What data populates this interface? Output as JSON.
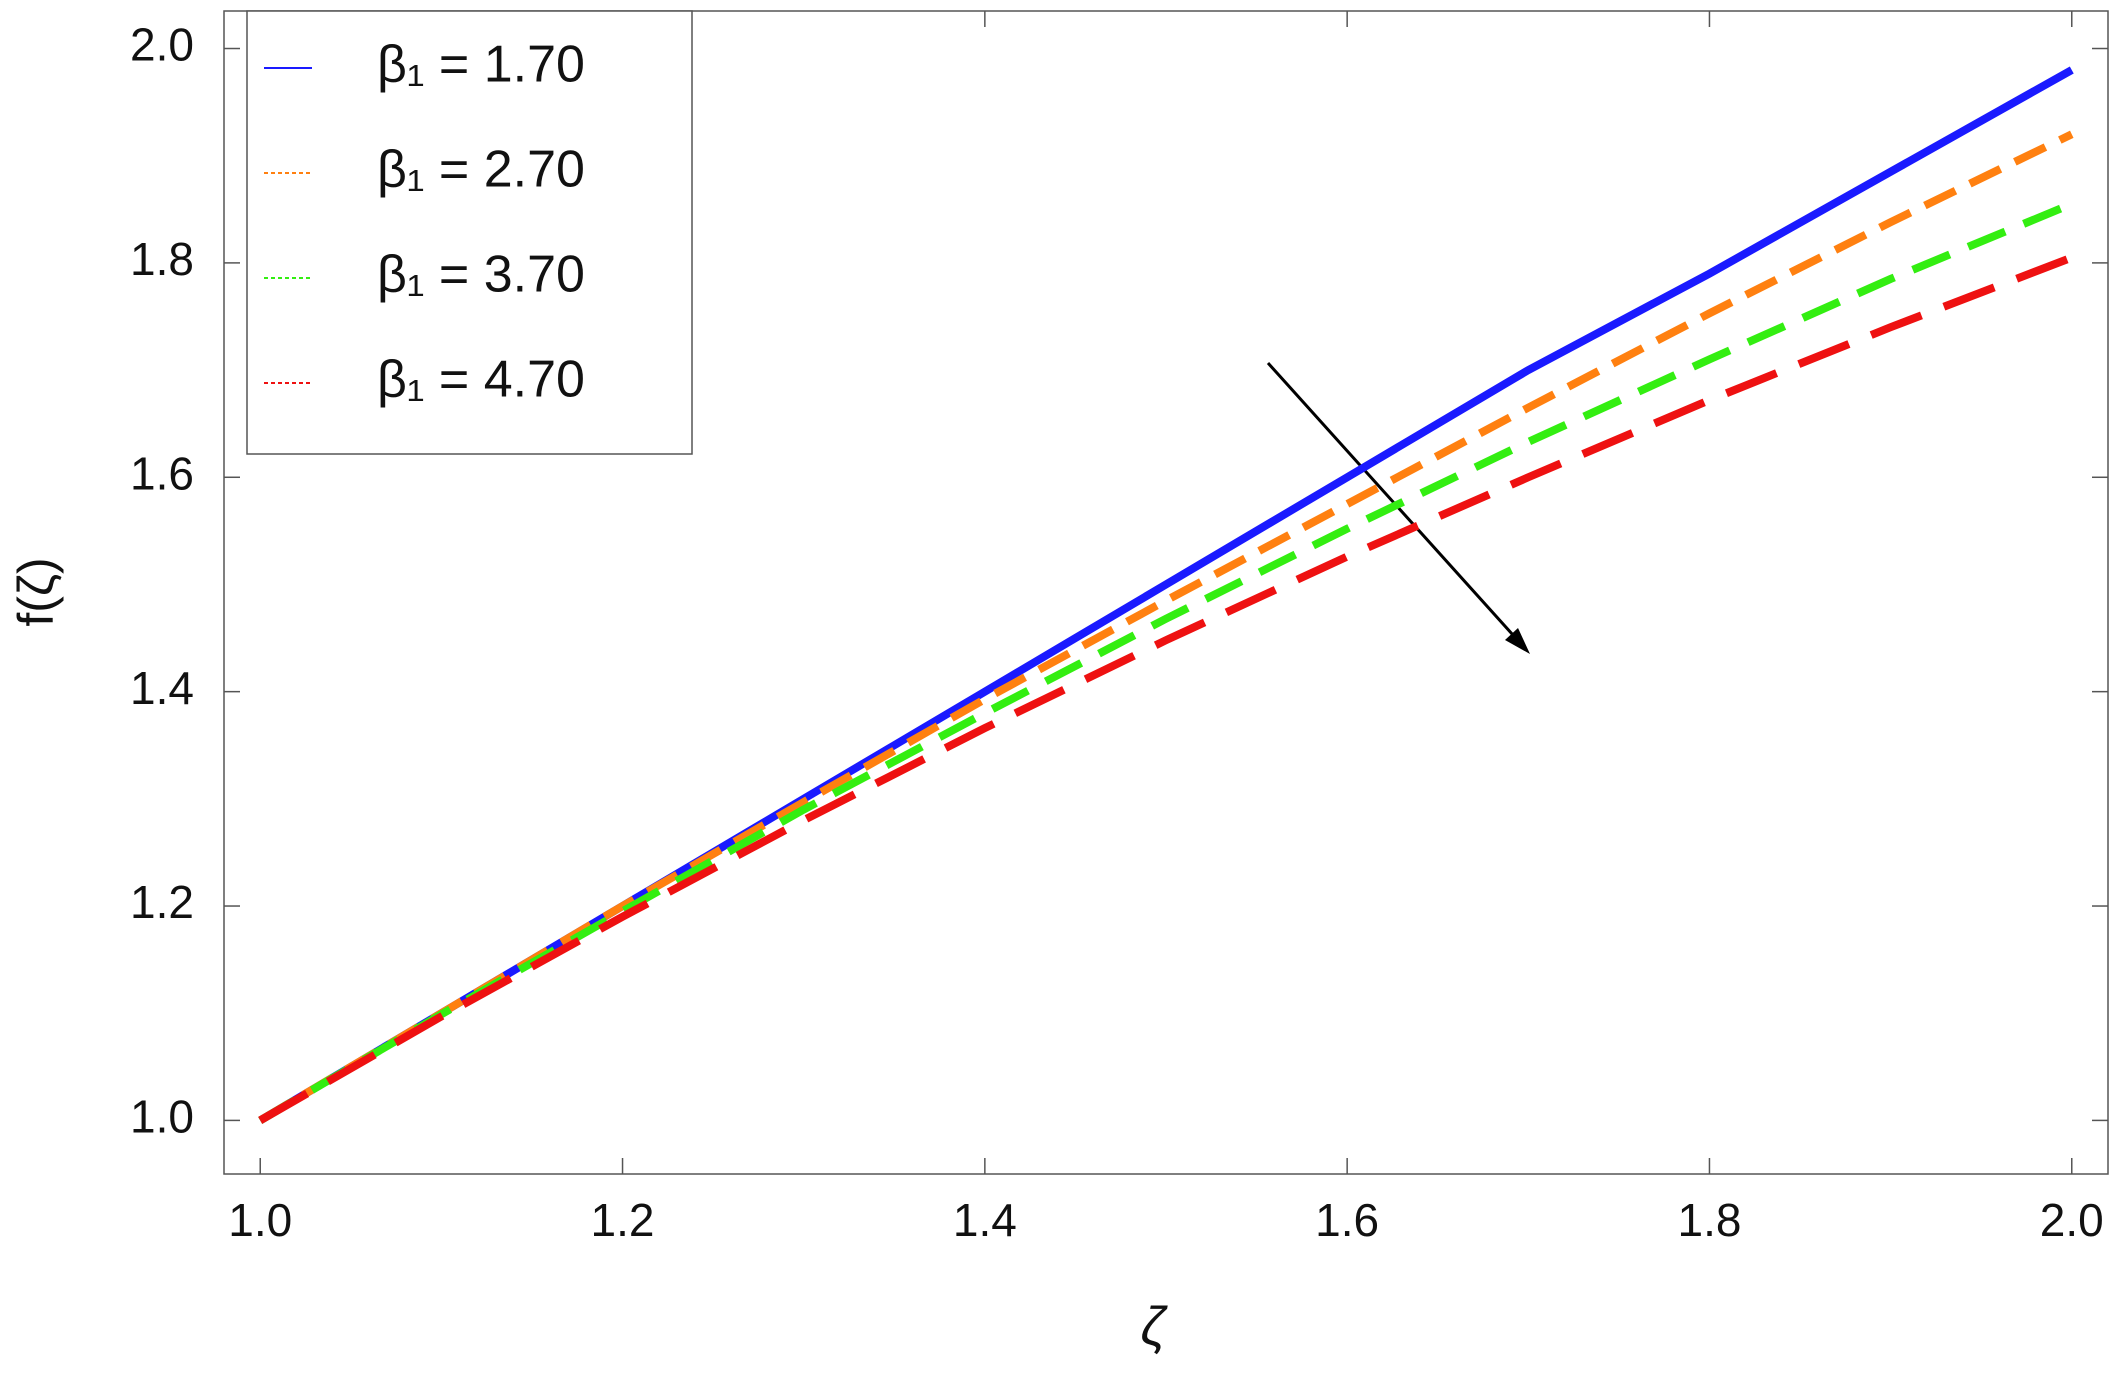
{
  "chart_data": {
    "type": "line",
    "x_label": "ζ",
    "y_label": "f(ζ)",
    "x": [
      1.0,
      1.1,
      1.2,
      1.3,
      1.4,
      1.5,
      1.6,
      1.7,
      1.8,
      1.9,
      2.0
    ],
    "series": [
      {
        "name": "β₁ = 1.70",
        "color": "#1a1aff",
        "dash": "solid",
        "values": [
          1.0,
          1.1,
          1.2,
          1.3,
          1.4,
          1.5,
          1.6,
          1.7,
          1.79,
          1.885,
          1.98
        ]
      },
      {
        "name": "β₁ = 2.70",
        "color": "#ff8010",
        "dash": "dashed",
        "values": [
          1.0,
          1.1,
          1.2,
          1.297,
          1.393,
          1.485,
          1.575,
          1.665,
          1.753,
          1.838,
          1.92
        ]
      },
      {
        "name": "β₁ = 3.70",
        "color": "#33ee11",
        "dash": "dashed",
        "values": [
          1.0,
          1.099,
          1.195,
          1.29,
          1.38,
          1.468,
          1.552,
          1.633,
          1.71,
          1.785,
          1.855
        ]
      },
      {
        "name": "β₁ = 4.70",
        "color": "#ee1111",
        "dash": "dashed",
        "values": [
          1.0,
          1.097,
          1.19,
          1.28,
          1.366,
          1.448,
          1.526,
          1.6,
          1.672,
          1.74,
          1.805
        ]
      }
    ],
    "xlim": [
      0.98,
      2.02
    ],
    "ylim": [
      0.95,
      2.035
    ],
    "xticks": [
      {
        "value": 1,
        "label": "1.0"
      },
      1.2,
      1.4,
      1.6,
      1.8,
      {
        "value": 2,
        "label": "2.0"
      }
    ],
    "yticks": [
      {
        "value": 1,
        "label": "1.0"
      },
      1.2,
      1.4,
      1.6,
      1.8,
      {
        "value": 2,
        "label": "2.0"
      }
    ],
    "grid": false,
    "legend": "upper left"
  }
}
